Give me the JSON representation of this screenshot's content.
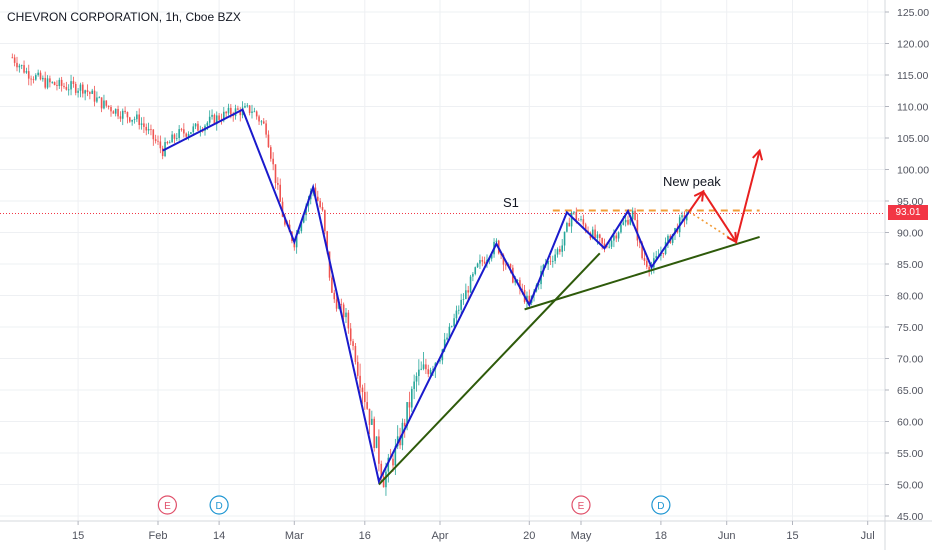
{
  "header": {
    "title": "CHEVRON CORPORATION, 1h, Cboe BZX"
  },
  "price_tag": "93.01",
  "annotations": {
    "s1_label": "S1",
    "new_peak_label": "New peak"
  },
  "events": [
    {
      "letter": "E",
      "date": "Feb 3",
      "color": "#e0506a"
    },
    {
      "letter": "D",
      "date": "Feb 14",
      "color": "#1e96d2"
    },
    {
      "letter": "E",
      "date": "May 1",
      "color": "#e0506a"
    },
    {
      "letter": "D",
      "date": "May 18",
      "color": "#1e96d2"
    }
  ],
  "colors": {
    "up_candle": "#26a69a",
    "down_candle": "#ef5350",
    "pattern_line": "#1a1acc",
    "trend_line": "#2e5a0a",
    "projection": "#e82020",
    "support_line": "#f29c38",
    "price_line": "#f23645",
    "grid": "#eef0f3"
  },
  "chart_data": {
    "type": "candlestick",
    "title": "CHEVRON CORPORATION, 1h, Cboe BZX",
    "ylim": [
      45,
      125
    ],
    "y_ticks": [
      "125.00",
      "120.00",
      "115.00",
      "110.00",
      "105.00",
      "100.00",
      "95.00",
      "90.00",
      "85.00",
      "80.00",
      "75.00",
      "70.00",
      "65.00",
      "60.00",
      "55.00",
      "50.00",
      "45.00"
    ],
    "x_ticks": [
      "15",
      "Feb",
      "14",
      "Mar",
      "16",
      "Apr",
      "20",
      "May",
      "18",
      "Jun",
      "15",
      "Jul"
    ],
    "last_price": 93.01,
    "price_path": [
      [
        "Jan 1",
        117.8
      ],
      [
        "Jan 4",
        115.5
      ],
      [
        "Jan 8",
        113.8
      ],
      [
        "Jan 12",
        113.2
      ],
      [
        "Jan 16",
        113.0
      ],
      [
        "Jan 20",
        110.5
      ],
      [
        "Jan 24",
        109.0
      ],
      [
        "Jan 28",
        107.8
      ],
      [
        "Feb 2",
        103.0
      ],
      [
        "Feb 5",
        105.5
      ],
      [
        "Feb 9",
        106.5
      ],
      [
        "Feb 13",
        108.0
      ],
      [
        "Feb 17",
        109.2
      ],
      [
        "Feb 21",
        109.5
      ],
      [
        "Feb 24",
        106.5
      ],
      [
        "Feb 26",
        98.5
      ],
      [
        "Feb 28",
        91.0
      ],
      [
        "Mar 1",
        88.5
      ],
      [
        "Mar 3",
        93.5
      ],
      [
        "Mar 5",
        97.2
      ],
      [
        "Mar 7",
        93.0
      ],
      [
        "Mar 9",
        80.0
      ],
      [
        "Mar 12",
        76.5
      ],
      [
        "Mar 16",
        64.0
      ],
      [
        "Mar 20",
        51.0
      ],
      [
        "Mar 23",
        56.0
      ],
      [
        "Mar 27",
        67.0
      ],
      [
        "Apr 1",
        70.5
      ],
      [
        "Apr 5",
        78.0
      ],
      [
        "Apr 9",
        84.5
      ],
      [
        "Apr 13",
        88.2
      ],
      [
        "Apr 16",
        83.5
      ],
      [
        "Apr 20",
        78.5
      ],
      [
        "Apr 23",
        84.5
      ],
      [
        "Apr 27",
        88.0
      ],
      [
        "Apr 29",
        93.2
      ],
      [
        "May 3",
        90.0
      ],
      [
        "May 6",
        87.5
      ],
      [
        "May 9",
        90.5
      ],
      [
        "May 12",
        93.0
      ],
      [
        "May 14",
        86.0
      ],
      [
        "May 16",
        84.5
      ],
      [
        "May 19",
        88.0
      ],
      [
        "May 22",
        91.5
      ],
      [
        "May 24",
        93.3
      ]
    ],
    "annotations": {
      "zigzag": [
        [
          "Feb 2",
          103.0
        ],
        [
          "Feb 19",
          109.5
        ],
        [
          "Mar 1",
          88.5
        ],
        [
          "Mar 5",
          97.2
        ],
        [
          "Mar 19",
          50.5
        ],
        [
          "Apr 13",
          88.2
        ],
        [
          "Apr 20",
          78.5
        ],
        [
          "Apr 28",
          93.2
        ],
        [
          "May 6",
          87.5
        ],
        [
          "May 11",
          93.4
        ],
        [
          "May 16",
          84.5
        ],
        [
          "May 24",
          93.3
        ]
      ],
      "trendline_1": [
        [
          "Mar 19",
          50.0
        ],
        [
          "May 5",
          86.7
        ]
      ],
      "trendline_2": [
        [
          "Apr 19",
          77.8
        ],
        [
          "Jun 8",
          89.3
        ]
      ],
      "support_s1": {
        "level": 93.5,
        "from": "Apr 25",
        "to": "Jun 8"
      },
      "projection": [
        [
          "May 24",
          93.3
        ],
        [
          "May 27",
          96.5
        ],
        [
          "Jun 3",
          88.5
        ],
        [
          "Jun 8",
          103.0
        ]
      ],
      "dotted_projection": [
        [
          "May 24",
          93.3
        ],
        [
          "Jun 3",
          88.5
        ]
      ]
    }
  }
}
